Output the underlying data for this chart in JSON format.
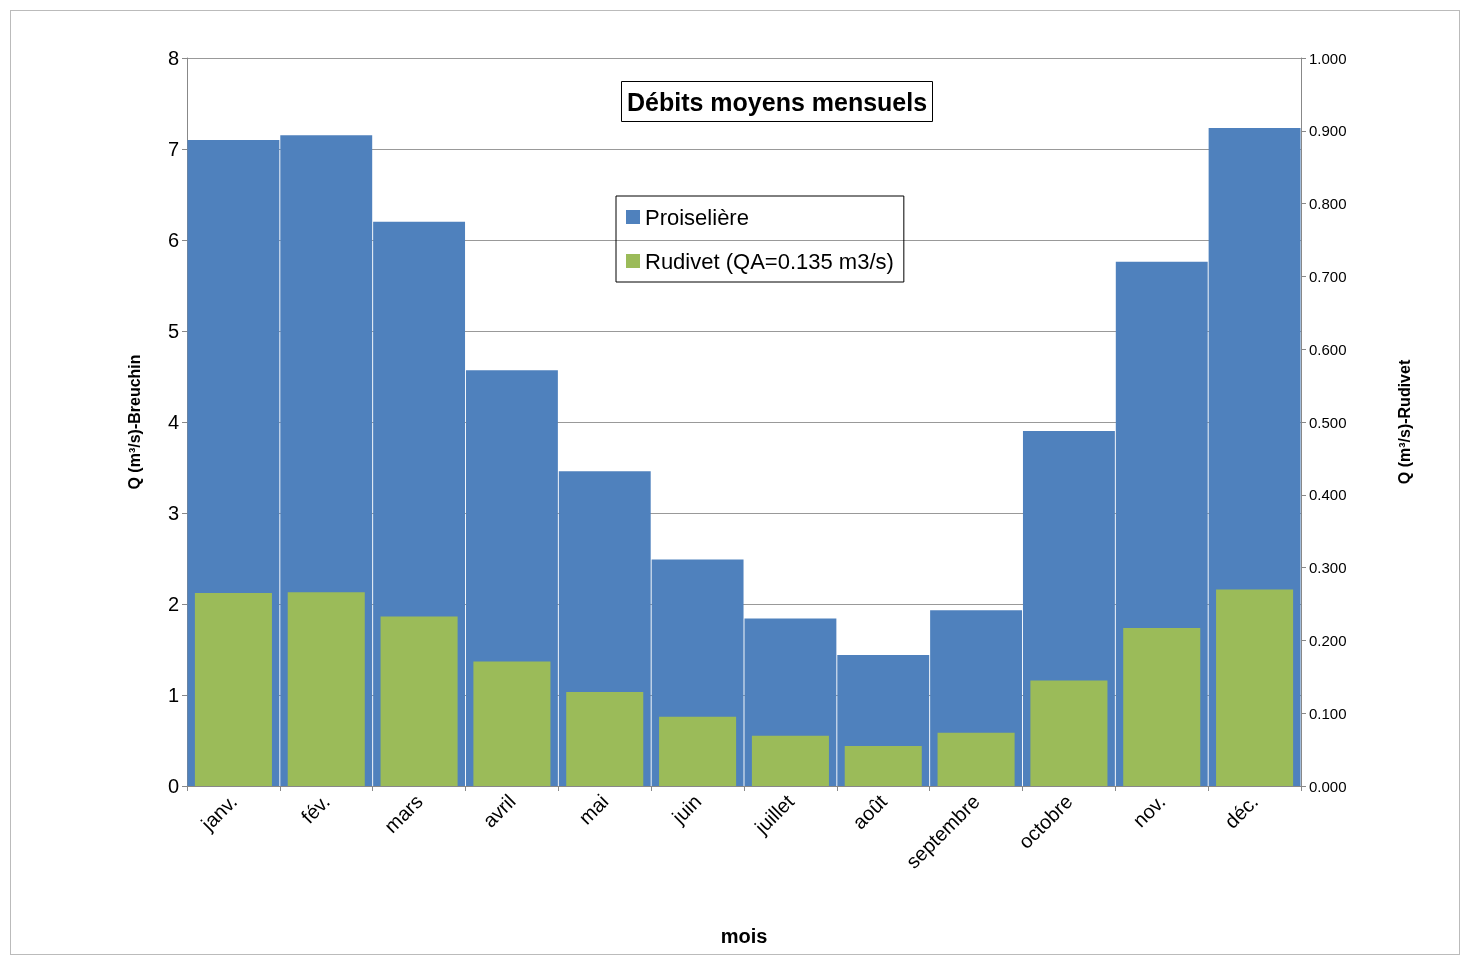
{
  "chart_data": {
    "type": "bar",
    "title": "Débits moyens mensuels",
    "xlabel": "mois",
    "ylabel": "Q (m³/s)-Breuchin",
    "y2label": "Q (m³/s)-Rudivet",
    "categories": [
      "janv.",
      "fév.",
      "mars",
      "avril",
      "mai",
      "juin",
      "juillet",
      "août",
      "septembre",
      "octobre",
      "nov.",
      "déc."
    ],
    "series": [
      {
        "name": "Proiselière",
        "color": "#4f81bd",
        "values": [
          7.1,
          7.15,
          6.2,
          4.57,
          3.46,
          2.49,
          1.84,
          1.44,
          1.93,
          3.9,
          5.76,
          7.23
        ]
      },
      {
        "name": "Rudivet (QA=0.135 m3/s)",
        "color": "#9bbb59",
        "axis": "y2",
        "values": [
          0.265,
          0.266,
          0.233,
          0.171,
          0.129,
          0.095,
          0.069,
          0.055,
          0.073,
          0.145,
          0.217,
          0.27
        ]
      }
    ],
    "ylim": [
      0,
      8
    ],
    "yticks": [
      0,
      1,
      2,
      3,
      4,
      5,
      6,
      7,
      8
    ],
    "y2lim": [
      0,
      1
    ],
    "y2ticks": [
      {
        "value": 0,
        "label": "0.000"
      },
      {
        "value": 0.1,
        "label": "0.100"
      },
      {
        "value": 0.2,
        "label": "0.200"
      },
      {
        "value": 0.3,
        "label": "0.300"
      },
      {
        "value": 0.4,
        "label": "0.400"
      },
      {
        "value": 0.5,
        "label": "0.500"
      },
      {
        "value": 0.6,
        "label": "0.600"
      },
      {
        "value": 0.7,
        "label": "0.700"
      },
      {
        "value": 0.8,
        "label": "0.800"
      },
      {
        "value": 0.9,
        "label": "0.900"
      },
      {
        "value": 1,
        "label": "1.000"
      }
    ],
    "grid": "y",
    "legend": "top"
  }
}
